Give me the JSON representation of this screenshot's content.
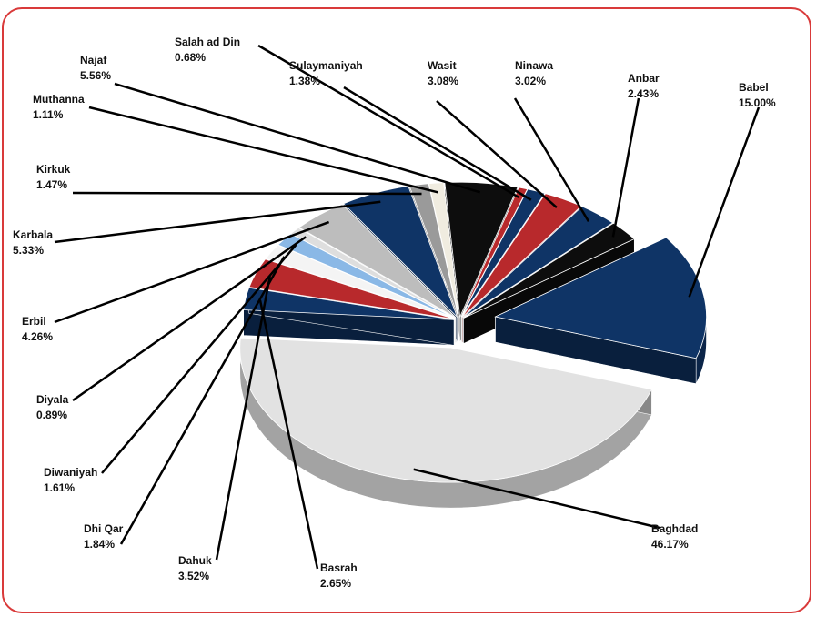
{
  "colors": {
    "frame": "#d93a3a",
    "navy": "#0f3466",
    "red": "#b8292c",
    "black": "#0d0d0d",
    "silver": "#cfcfcf",
    "light_blue": "#8ab8e6",
    "cream": "#f0ece0"
  },
  "chart_data": {
    "type": "pie",
    "title": "",
    "legend": "none",
    "slices": [
      {
        "name": "Baghdad",
        "label": "Baghdad",
        "percent": "46.17%",
        "value": 46.17,
        "color": "#e2e2e2"
      },
      {
        "name": "Basrah",
        "label": "Basrah",
        "percent": "2.65%",
        "value": 2.65,
        "color": "#0f3466"
      },
      {
        "name": "Dahuk",
        "label": "Dahuk",
        "percent": "3.52%",
        "value": 3.52,
        "color": "#b8292c"
      },
      {
        "name": "Dhi Qar",
        "label": "Dhi Qar",
        "percent": "1.84%",
        "value": 1.84,
        "color": "#f4f4f4"
      },
      {
        "name": "Diwaniyah",
        "label": "Diwaniyah",
        "percent": "1.61%",
        "value": 1.61,
        "color": "#8ab8e6"
      },
      {
        "name": "Diyala",
        "label": "Diyala",
        "percent": "0.89%",
        "value": 0.89,
        "color": "#dedede"
      },
      {
        "name": "Erbil",
        "label": "Erbil",
        "percent": "4.26%",
        "value": 4.26,
        "color": "#bdbdbd"
      },
      {
        "name": "Karbala",
        "label": "Karbala",
        "percent": "5.33%",
        "value": 5.33,
        "color": "#0f3466"
      },
      {
        "name": "Kirkuk",
        "label": "Kirkuk",
        "percent": "1.47%",
        "value": 1.47,
        "color": "#9a9a9a"
      },
      {
        "name": "Muthanna",
        "label": "Muthanna",
        "percent": "1.11%",
        "value": 1.11,
        "color": "#f0ece0"
      },
      {
        "name": "Najaf",
        "label": "Najaf",
        "percent": "5.56%",
        "value": 5.56,
        "color": "#0d0d0d"
      },
      {
        "name": "Salah ad Din",
        "label": "Salah ad Din",
        "percent": "0.68%",
        "value": 0.68,
        "color": "#b8292c"
      },
      {
        "name": "Sulaymaniyah",
        "label": "Sulaymaniyah",
        "percent": "1.38%",
        "value": 1.38,
        "color": "#0f3466"
      },
      {
        "name": "Wasit",
        "label": "Wasit",
        "percent": "3.08%",
        "value": 3.08,
        "color": "#b8292c"
      },
      {
        "name": "Ninawa",
        "label": "Ninawa",
        "percent": "3.02%",
        "value": 3.02,
        "color": "#0f3466"
      },
      {
        "name": "Anbar",
        "label": "Anbar",
        "percent": "2.43%",
        "value": 2.43,
        "color": "#0d0d0d"
      },
      {
        "name": "Babel",
        "label": "Babel",
        "percent": "15.00%",
        "value": 15.0,
        "color": "#0f3466"
      }
    ]
  }
}
